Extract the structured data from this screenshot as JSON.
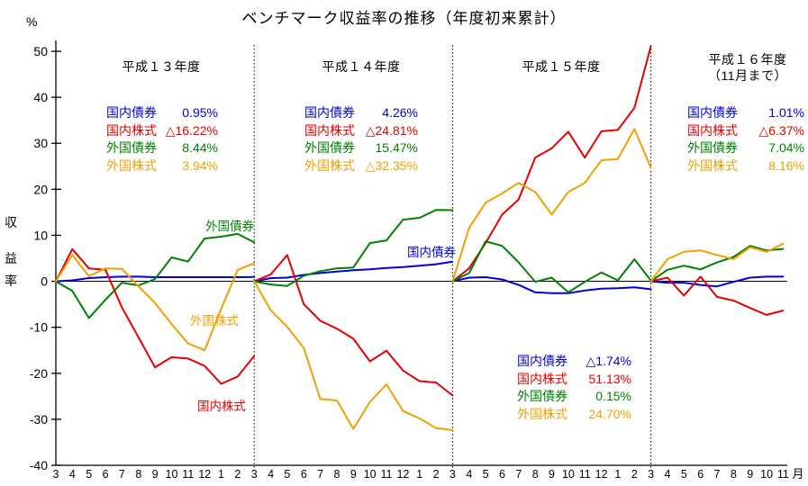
{
  "title": "ベンチマーク収益率の推移（年度初来累計）",
  "y_axis": {
    "unit": "%",
    "axis_label_chars": [
      "収",
      "益",
      "率"
    ],
    "tick_labels": [
      "50",
      "40",
      "30",
      "20",
      "10",
      "0",
      "-10",
      "-20",
      "-30",
      "-40"
    ]
  },
  "x_axis": {
    "suffix": "月"
  },
  "periods": [
    {
      "title": "平成１３年度",
      "subtitle": ""
    },
    {
      "title": "平成１４年度",
      "subtitle": ""
    },
    {
      "title": "平成１５年度",
      "subtitle": ""
    },
    {
      "title": "平成１６年度",
      "subtitle": "（11月まで）"
    }
  ],
  "legend_blocks": [
    {
      "rows": [
        {
          "label": "国内債券",
          "value": "0.95%"
        },
        {
          "label": "国内株式",
          "value": "△16.22%"
        },
        {
          "label": "外国債券",
          "value": "8.44%"
        },
        {
          "label": "外国株式",
          "value": "3.94%"
        }
      ]
    },
    {
      "rows": [
        {
          "label": "国内債券",
          "value": "4.26%"
        },
        {
          "label": "国内株式",
          "value": "△24.81%"
        },
        {
          "label": "外国債券",
          "value": "15.47%"
        },
        {
          "label": "外国株式",
          "value": "△32.35%"
        }
      ]
    },
    {
      "rows": [
        {
          "label": "国内債券",
          "value": "△1.74%"
        },
        {
          "label": "国内株式",
          "value": "51.13%"
        },
        {
          "label": "外国債券",
          "value": "0.15%"
        },
        {
          "label": "外国株式",
          "value": "24.70%"
        }
      ]
    },
    {
      "rows": [
        {
          "label": "国内債券",
          "value": "1.01%"
        },
        {
          "label": "国内株式",
          "value": "△6.37%"
        },
        {
          "label": "外国債券",
          "value": "7.04%"
        },
        {
          "label": "外国株式",
          "value": "8.16%"
        }
      ]
    }
  ],
  "chart_data": {
    "type": "line",
    "title": "ベンチマーク収益率の推移（年度初来累計）",
    "ylabel": "収益率（％）",
    "xlabel": "月",
    "ylim": [
      -40,
      50
    ],
    "grid": false,
    "x_labels": [
      "3",
      "4",
      "5",
      "6",
      "7",
      "8",
      "9",
      "10",
      "11",
      "12",
      "1",
      "2",
      "3",
      "4",
      "5",
      "6",
      "7",
      "8",
      "9",
      "10",
      "11",
      "12",
      "1",
      "2",
      "3",
      "4",
      "5",
      "6",
      "7",
      "8",
      "9",
      "10",
      "11",
      "12",
      "1",
      "2",
      "3",
      "4",
      "5",
      "6",
      "7",
      "8",
      "9",
      "10",
      "11"
    ],
    "fiscal_year_boundaries": [
      0,
      12,
      24,
      36,
      44
    ],
    "note": "Each fiscal-year segment restarts at 0% at the March (3) boundary; dotted vertical lines mark fiscal-year boundaries.",
    "series": [
      {
        "name": "国内債券",
        "key": "domestic-bond",
        "color": "#0000dd",
        "segments": [
          [
            0,
            0.2,
            0.7,
            0.9,
            1.0,
            1.0,
            0.9,
            0.9,
            0.9,
            0.9,
            0.9,
            0.9,
            0.95
          ],
          [
            0,
            0.7,
            0.8,
            1.4,
            1.8,
            2.1,
            2.4,
            2.6,
            2.9,
            3.1,
            3.4,
            3.7,
            4.26
          ],
          [
            0,
            0.8,
            0.9,
            0.4,
            -0.8,
            -2.4,
            -2.6,
            -2.6,
            -2.0,
            -1.6,
            -1.5,
            -1.3,
            -1.74
          ],
          [
            0,
            -0.3,
            -0.3,
            -0.8,
            -1.1,
            -0.1,
            0.8,
            1.0,
            1.01
          ]
        ]
      },
      {
        "name": "国内株式",
        "key": "domestic-stock",
        "color": "#e60000",
        "segments": [
          [
            0,
            7.0,
            2.8,
            2.5,
            -5.7,
            -12.2,
            -18.7,
            -16.5,
            -16.8,
            -18.4,
            -22.3,
            -20.7,
            -16.22
          ],
          [
            0,
            1.5,
            5.7,
            -5.0,
            -8.6,
            -10.3,
            -12.5,
            -17.4,
            -15.1,
            -19.4,
            -21.7,
            -22.0,
            -24.81
          ],
          [
            0,
            2.8,
            8.3,
            14.5,
            17.8,
            26.9,
            28.9,
            32.5,
            26.9,
            32.6,
            32.9,
            37.7,
            51.13
          ],
          [
            0,
            0.8,
            -3.1,
            1.0,
            -3.4,
            -4.2,
            -5.8,
            -7.3,
            -6.37
          ]
        ]
      },
      {
        "name": "外国債券",
        "key": "foreign-bond",
        "color": "#008000",
        "segments": [
          [
            0,
            -2.1,
            -8.0,
            -4.0,
            -0.3,
            -0.9,
            0.5,
            5.2,
            4.3,
            9.3,
            9.7,
            10.3,
            8.44
          ],
          [
            0,
            -0.7,
            -1.0,
            1.2,
            2.2,
            2.8,
            3.0,
            8.3,
            8.9,
            13.4,
            13.8,
            15.5,
            15.47
          ],
          [
            0,
            1.8,
            8.7,
            7.7,
            4.1,
            -0.1,
            0.8,
            -2.4,
            -0.1,
            1.9,
            0.2,
            4.8,
            0.15
          ],
          [
            0,
            2.5,
            3.4,
            2.6,
            4.1,
            5.3,
            7.7,
            6.7,
            7.04
          ]
        ]
      },
      {
        "name": "外国株式",
        "key": "foreign-stock",
        "color": "#f2a000",
        "segments": [
          [
            0,
            5.7,
            1.1,
            2.8,
            2.7,
            -1.1,
            -4.7,
            -9.3,
            -13.5,
            -15.0,
            -6.0,
            2.5,
            3.94
          ],
          [
            0,
            -6.3,
            -9.9,
            -14.5,
            -25.6,
            -25.9,
            -32.1,
            -26.2,
            -22.4,
            -28.2,
            -29.8,
            -31.9,
            -32.35
          ],
          [
            0,
            11.6,
            17.1,
            19.1,
            21.4,
            19.4,
            14.5,
            19.4,
            21.4,
            26.3,
            26.6,
            33.1,
            24.7
          ],
          [
            0,
            4.8,
            6.4,
            6.7,
            5.7,
            4.8,
            7.4,
            6.4,
            8.16
          ]
        ]
      }
    ]
  }
}
